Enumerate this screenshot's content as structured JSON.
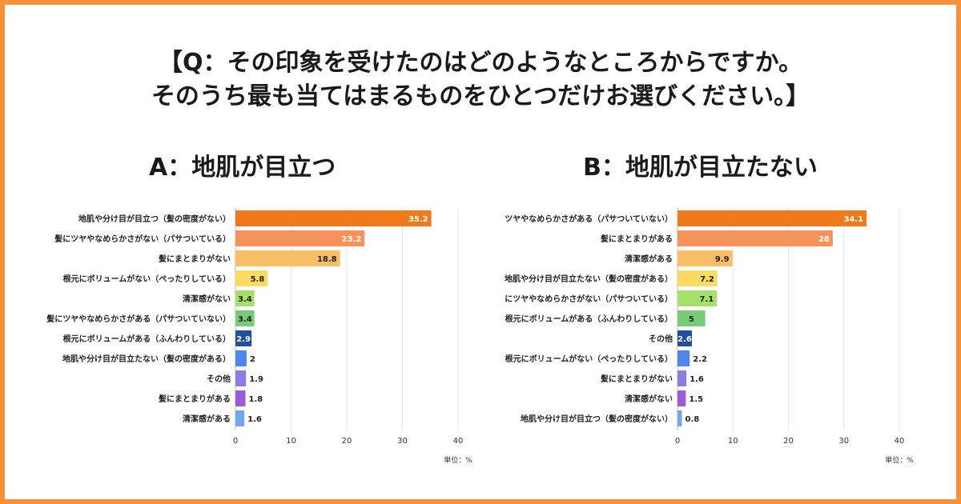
{
  "question": {
    "line1": "【Q：その印象を受けたのはどのようなところからですか。",
    "line2": "そのうち最も当てはまるものをひとつだけお選びください。】"
  },
  "chart_data": [
    {
      "type": "bar",
      "orientation": "horizontal",
      "title": "A：地肌が目立つ",
      "categories": [
        "地肌や分け目が目立つ（髪の密度がない）",
        "髪にツヤやなめらかさがない（パサついている）",
        "髪にまとまりがない",
        "根元にボリュームがない（ぺったりしている）",
        "清潔感がない",
        "髪にツヤやなめらかさがある（パサついていない）",
        "根元にボリュームがある（ふんわりしている）",
        "地肌や分け目が目立たない（髪の密度がある）",
        "その他",
        "髪にまとまりがある",
        "清潔感がある"
      ],
      "values": [
        35.2,
        23.2,
        18.8,
        5.8,
        3.4,
        3.4,
        2.9,
        2,
        1.9,
        1.8,
        1.6
      ],
      "colors": [
        "#F07A1A",
        "#F6925A",
        "#FABF66",
        "#FCDB62",
        "#A6E06A",
        "#7ACB78",
        "#1F4F9E",
        "#4C86EE",
        "#8C7DE4",
        "#9A5CD6",
        "#6FA8F0"
      ],
      "xlim": [
        0,
        40
      ],
      "xticks": [
        0,
        10,
        20,
        30,
        40
      ],
      "unit_label": "単位：%",
      "grid": true
    },
    {
      "type": "bar",
      "orientation": "horizontal",
      "title": "B：地肌が目立たない",
      "categories": [
        "ツヤやなめらかさがある（パサついていない）",
        "髪にまとまりがある",
        "清潔感がある",
        "地肌や分け目が目立たない（髪の密度がある）",
        "にツヤやなめらかさがない（パサついている）",
        "根元にボリュームがある（ふんわりしている）",
        "その他",
        "根元にボリュームがない（ぺったりしている）",
        "髪にまとまりがない",
        "清潔感がない",
        "地肌や分け目が目立つ（髪の密度がない）"
      ],
      "values": [
        34.1,
        28,
        9.9,
        7.2,
        7.1,
        5,
        2.6,
        2.2,
        1.6,
        1.5,
        0.8
      ],
      "colors": [
        "#F07A1A",
        "#F6925A",
        "#FABF66",
        "#FCDB62",
        "#A6E06A",
        "#7ACB78",
        "#1F4F9E",
        "#4C86EE",
        "#8C7DE4",
        "#9A5CD6",
        "#6FA8F0"
      ],
      "xlim": [
        0,
        40
      ],
      "xticks": [
        0,
        10,
        20,
        30,
        40
      ],
      "unit_label": "単位：%",
      "grid": true
    }
  ]
}
